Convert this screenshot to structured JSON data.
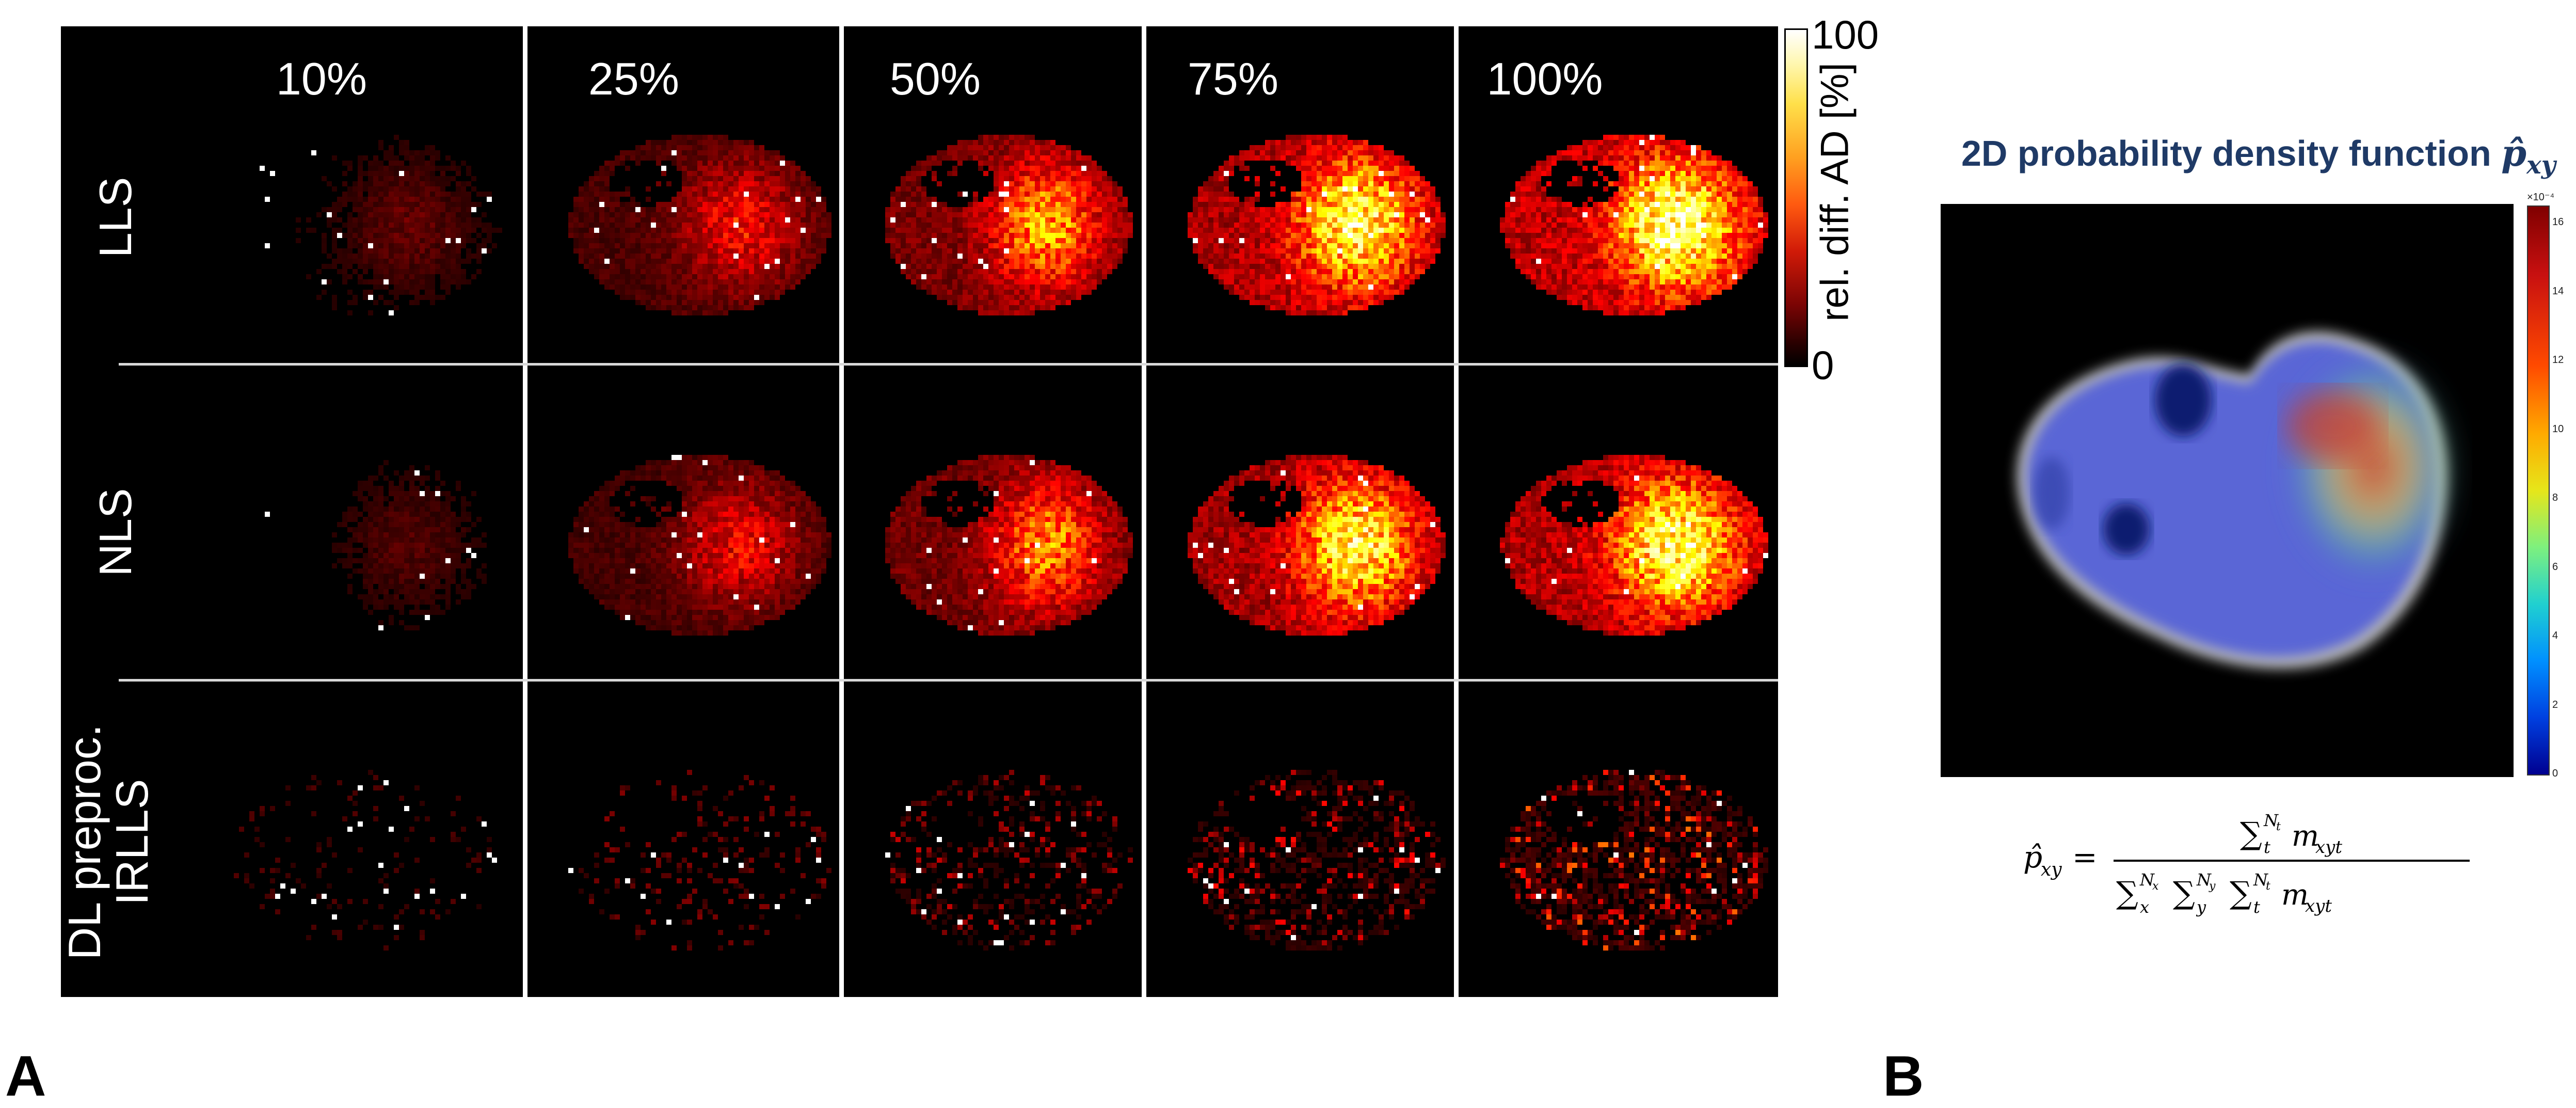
{
  "panel_a": {
    "letter": "A",
    "columns": [
      "10%",
      "25%",
      "50%",
      "75%",
      "100%"
    ],
    "rows": [
      {
        "label_line1": "LLS",
        "label_line2": ""
      },
      {
        "label_line1": "NLS",
        "label_line2": ""
      },
      {
        "label_line1": "DL preproc.",
        "label_line2": "IRLLS"
      }
    ],
    "colorbar": {
      "max_label": "100",
      "min_label": "0",
      "label": "rel. diff. AD [%]",
      "colormap": "hot"
    }
  },
  "panel_b": {
    "letter": "B",
    "title_text": "2D probability density function ",
    "title_symbol": "p̂",
    "title_subscript": "xy",
    "colorbar": {
      "exponent": "×10⁻⁴",
      "ticks": [
        "16",
        "14",
        "12",
        "10",
        "8",
        "6",
        "4",
        "2",
        "0"
      ],
      "colormap": "jet"
    },
    "formula": {
      "lhs": "p̂",
      "lhs_sub": "xy",
      "numerator_sum_sup": "N",
      "numerator_sum_sup_sub": "t",
      "numerator_sum_sub": "t",
      "term": "m",
      "term_sub": "xyt",
      "denom_sub_1": "x",
      "denom_sup_1": "N",
      "denom_sup_1_sub": "x",
      "denom_sub_2": "y",
      "denom_sup_2": "N",
      "denom_sup_2_sub": "y",
      "denom_sub_3": "t",
      "denom_sup_3": "N",
      "denom_sup_3_sub": "t"
    }
  }
}
